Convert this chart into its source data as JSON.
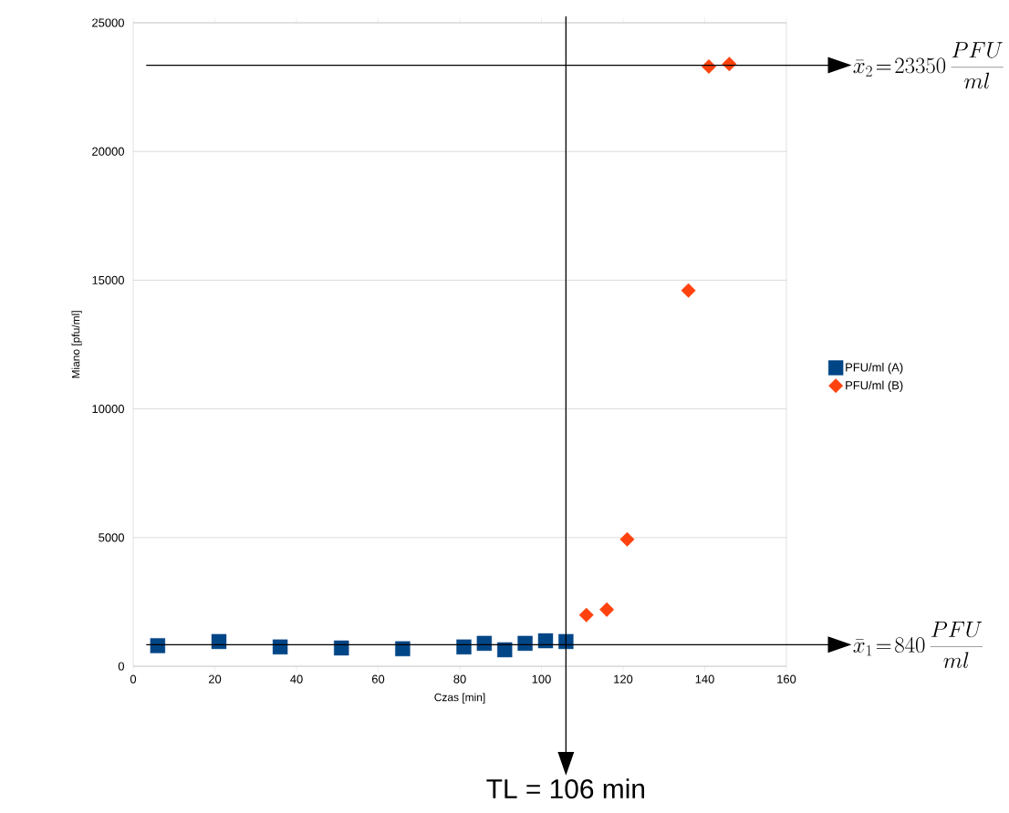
{
  "chart_data": {
    "type": "scatter",
    "xlabel": "Czas [min]",
    "ylabel": "Miano [pfu/ml]",
    "series": [
      {
        "name": "PFU/ml (A)",
        "color": "#004586",
        "marker": "square",
        "x": [
          6,
          21,
          36,
          51,
          66,
          81,
          86,
          91,
          96,
          101,
          106
        ],
        "values": [
          800,
          960,
          750,
          710,
          680,
          750,
          890,
          640,
          890,
          990,
          960
        ]
      },
      {
        "name": "PFU/ml (B)",
        "color": "#ff420e",
        "marker": "diamond",
        "x": [
          111,
          116,
          121,
          136,
          141,
          146
        ],
        "values": [
          1990,
          2200,
          4930,
          14600,
          23300,
          23400
        ]
      }
    ],
    "xlim": [
      0,
      160
    ],
    "ylim": [
      0,
      25000
    ],
    "xticks": [
      0,
      20,
      40,
      60,
      80,
      100,
      120,
      140,
      160
    ],
    "yticks": [
      0,
      5000,
      10000,
      15000,
      20000,
      25000
    ],
    "grid": "y",
    "legend": "right",
    "ref_lines": [
      {
        "axis": "y",
        "value": 840,
        "label": "\\bar{x}_1\\!=\\!840\\,\\frac{PFU}{ml}",
        "color": "#000000"
      },
      {
        "axis": "y",
        "value": 23350,
        "label": "\\bar{x}_2\\!=\\!23350\\,\\frac{PFU}{ml}",
        "color": "#000000"
      },
      {
        "axis": "x",
        "value": 106,
        "label": "TL = 106 min",
        "color": "#000000"
      }
    ]
  }
}
